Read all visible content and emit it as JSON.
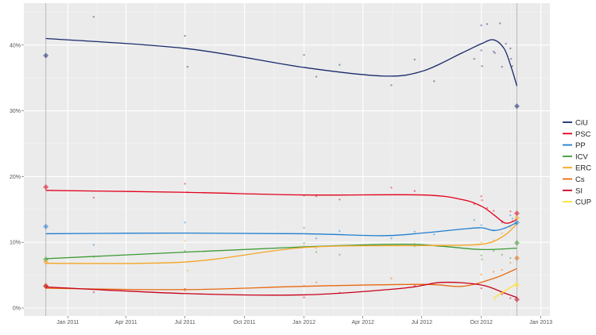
{
  "chart_data": {
    "type": "line",
    "title": "",
    "xlabel": "",
    "ylabel": "",
    "xlim": [
      "2010-10-25",
      "2013-01-15"
    ],
    "ylim": [
      -1,
      46
    ],
    "grid": true,
    "legend_position": "right",
    "x_ticks": [
      {
        "date": "2011-01-01",
        "label": "Jan 2011"
      },
      {
        "date": "2011-04-01",
        "label": "Apr 2011"
      },
      {
        "date": "2011-07-01",
        "label": "Jul 2011"
      },
      {
        "date": "2011-10-01",
        "label": "Oct 2011"
      },
      {
        "date": "2012-01-01",
        "label": "Jan 2012"
      },
      {
        "date": "2012-04-01",
        "label": "Apr 2012"
      },
      {
        "date": "2012-07-01",
        "label": "Jul 2012"
      },
      {
        "date": "2012-10-01",
        "label": "Oct 2012"
      },
      {
        "date": "2013-01-01",
        "label": "Jan 2013"
      }
    ],
    "y_ticks": [
      {
        "value": 0,
        "label": "0%"
      },
      {
        "value": 10,
        "label": "10%"
      },
      {
        "value": 20,
        "label": "20%"
      },
      {
        "value": 30,
        "label": "30%"
      },
      {
        "value": 40,
        "label": "40%"
      }
    ],
    "election_dates": [
      "2010-11-28",
      "2012-11-25"
    ],
    "series": [
      {
        "name": "CiU",
        "color": "#1a2a6c",
        "trend": [
          [
            "2010-11-28",
            41
          ],
          [
            "2011-07-01",
            39.5
          ],
          [
            "2012-01-01",
            36.6
          ],
          [
            "2012-05-01",
            35.3
          ],
          [
            "2012-07-01",
            36
          ],
          [
            "2012-09-01",
            38.8
          ],
          [
            "2012-10-01",
            40.2
          ],
          [
            "2012-10-20",
            40.8
          ],
          [
            "2012-11-05",
            39.5
          ],
          [
            "2012-11-15",
            37
          ],
          [
            "2012-11-25",
            33.8
          ]
        ],
        "results": [
          [
            "2010-11-28",
            38.4
          ],
          [
            "2012-11-25",
            30.7
          ]
        ],
        "polls": [
          [
            "2011-02-10",
            44.3
          ],
          [
            "2011-07-01",
            41.4
          ],
          [
            "2011-07-05",
            36.7
          ],
          [
            "2012-01-01",
            38.5
          ],
          [
            "2012-01-20",
            35.2
          ],
          [
            "2012-02-25",
            37
          ],
          [
            "2012-05-15",
            33.9
          ],
          [
            "2012-06-20",
            37.8
          ],
          [
            "2012-07-20",
            34.5
          ],
          [
            "2012-09-20",
            37.9
          ],
          [
            "2012-10-01",
            43
          ],
          [
            "2012-10-01",
            39.2
          ],
          [
            "2012-10-02",
            36.8
          ],
          [
            "2012-10-10",
            43.2
          ],
          [
            "2012-10-20",
            39
          ],
          [
            "2012-10-22",
            38.8
          ],
          [
            "2012-10-30",
            43.3
          ],
          [
            "2012-11-02",
            36.7
          ],
          [
            "2012-11-08",
            40.2
          ],
          [
            "2012-11-15",
            39.5
          ],
          [
            "2012-11-16",
            37.9
          ],
          [
            "2012-11-18",
            36.8
          ]
        ]
      },
      {
        "name": "PSC",
        "color": "#e2001a",
        "trend": [
          [
            "2010-11-28",
            17.9
          ],
          [
            "2011-07-01",
            17.6
          ],
          [
            "2012-01-01",
            17.2
          ],
          [
            "2012-07-01",
            17.2
          ],
          [
            "2012-09-01",
            16.5
          ],
          [
            "2012-10-01",
            15.5
          ],
          [
            "2012-10-20",
            14.2
          ],
          [
            "2012-11-05",
            13
          ],
          [
            "2012-11-15",
            13
          ],
          [
            "2012-11-25",
            13.5
          ]
        ],
        "results": [
          [
            "2010-11-28",
            18.4
          ],
          [
            "2012-11-25",
            14.4
          ]
        ],
        "polls": [
          [
            "2011-02-10",
            16.8
          ],
          [
            "2011-07-01",
            18.9
          ],
          [
            "2011-07-05",
            17.6
          ],
          [
            "2012-01-01",
            17.1
          ],
          [
            "2012-01-20",
            17
          ],
          [
            "2012-02-25",
            16.5
          ],
          [
            "2012-05-15",
            18.3
          ],
          [
            "2012-06-20",
            17.8
          ],
          [
            "2012-09-20",
            15.8
          ],
          [
            "2012-10-01",
            17
          ],
          [
            "2012-10-02",
            16.4
          ],
          [
            "2012-10-10",
            15.2
          ],
          [
            "2012-10-20",
            14.8
          ],
          [
            "2012-11-02",
            13.2
          ],
          [
            "2012-11-15",
            14.7
          ],
          [
            "2012-11-18",
            13.2
          ]
        ]
      },
      {
        "name": "PP",
        "color": "#1f7fd0",
        "trend": [
          [
            "2010-11-28",
            11.3
          ],
          [
            "2011-07-01",
            11.4
          ],
          [
            "2012-01-01",
            11.3
          ],
          [
            "2012-05-01",
            11
          ],
          [
            "2012-07-01",
            11.4
          ],
          [
            "2012-09-01",
            12
          ],
          [
            "2012-10-01",
            12.2
          ],
          [
            "2012-10-20",
            11.8
          ],
          [
            "2012-11-05",
            12.1
          ],
          [
            "2012-11-25",
            13
          ]
        ],
        "results": [
          [
            "2010-11-28",
            12.4
          ],
          [
            "2012-11-25",
            13
          ]
        ],
        "polls": [
          [
            "2011-02-10",
            9.6
          ],
          [
            "2011-07-01",
            13
          ],
          [
            "2012-01-01",
            12.2
          ],
          [
            "2012-01-20",
            10.6
          ],
          [
            "2012-02-25",
            11.7
          ],
          [
            "2012-05-15",
            10.6
          ],
          [
            "2012-06-20",
            11.6
          ],
          [
            "2012-07-20",
            11.2
          ],
          [
            "2012-09-20",
            13.4
          ],
          [
            "2012-10-01",
            12.6
          ],
          [
            "2012-10-20",
            11.8
          ],
          [
            "2012-11-02",
            13
          ],
          [
            "2012-11-15",
            14.1
          ],
          [
            "2012-11-18",
            13.6
          ]
        ]
      },
      {
        "name": "ICV",
        "color": "#3c9a34",
        "trend": [
          [
            "2010-11-28",
            7.5
          ],
          [
            "2011-07-01",
            8.5
          ],
          [
            "2012-01-01",
            9.3
          ],
          [
            "2012-06-01",
            9.7
          ],
          [
            "2012-08-01",
            9.4
          ],
          [
            "2012-10-01",
            8.9
          ],
          [
            "2012-11-25",
            9.1
          ]
        ],
        "results": [
          [
            "2010-11-28",
            7.4
          ],
          [
            "2012-11-25",
            9.9
          ]
        ],
        "polls": [
          [
            "2011-02-10",
            7.8
          ],
          [
            "2011-07-01",
            8.7
          ],
          [
            "2012-01-01",
            9.9
          ],
          [
            "2012-01-20",
            8.5
          ],
          [
            "2012-02-25",
            8.1
          ],
          [
            "2012-06-20",
            9.4
          ],
          [
            "2012-10-01",
            8
          ],
          [
            "2012-10-02",
            7.4
          ],
          [
            "2012-10-20",
            8.7
          ],
          [
            "2012-11-02",
            8.1
          ],
          [
            "2012-11-15",
            7.6
          ]
        ]
      },
      {
        "name": "ERC",
        "color": "#f5a623",
        "trend": [
          [
            "2010-11-28",
            6.8
          ],
          [
            "2011-07-01",
            7
          ],
          [
            "2012-01-01",
            9.2
          ],
          [
            "2012-07-01",
            9.5
          ],
          [
            "2012-10-01",
            9.7
          ],
          [
            "2012-11-05",
            11
          ],
          [
            "2012-11-25",
            12.8
          ]
        ],
        "results": [
          [
            "2010-11-28",
            7
          ],
          [
            "2012-11-25",
            13.7
          ]
        ],
        "polls": [
          [
            "2011-07-01",
            10.2
          ],
          [
            "2011-07-05",
            5.7
          ],
          [
            "2012-01-01",
            9.5
          ],
          [
            "2012-01-20",
            9.1
          ],
          [
            "2012-06-20",
            9.8
          ],
          [
            "2012-10-01",
            10
          ],
          [
            "2012-10-20",
            10.3
          ],
          [
            "2012-11-02",
            11.4
          ],
          [
            "2012-11-15",
            12.3
          ]
        ]
      },
      {
        "name": "Cs",
        "color": "#e86a12",
        "trend": [
          [
            "2010-11-28",
            3
          ],
          [
            "2011-07-01",
            2.8
          ],
          [
            "2012-01-01",
            3.3
          ],
          [
            "2012-07-01",
            3.6
          ],
          [
            "2012-09-01",
            3.3
          ],
          [
            "2012-10-20",
            4.5
          ],
          [
            "2012-11-25",
            6
          ]
        ],
        "results": [
          [
            "2010-11-28",
            3.4
          ],
          [
            "2012-11-25",
            7.6
          ]
        ],
        "polls": [
          [
            "2011-07-01",
            2.6
          ],
          [
            "2012-01-01",
            3.4
          ],
          [
            "2012-01-20",
            3.9
          ],
          [
            "2012-05-15",
            4.5
          ],
          [
            "2012-10-01",
            5.1
          ],
          [
            "2012-10-20",
            5.5
          ],
          [
            "2012-11-02",
            5.8
          ],
          [
            "2012-11-15",
            6.9
          ]
        ]
      },
      {
        "name": "SI",
        "color": "#c8001a",
        "trend": [
          [
            "2010-11-28",
            3.2
          ],
          [
            "2011-07-01",
            2.2
          ],
          [
            "2012-01-01",
            2
          ],
          [
            "2012-06-01",
            3
          ],
          [
            "2012-08-01",
            3.9
          ],
          [
            "2012-10-01",
            3.5
          ],
          [
            "2012-11-05",
            2.3
          ],
          [
            "2012-11-25",
            1.6
          ]
        ],
        "results": [
          [
            "2010-11-28",
            3.3
          ],
          [
            "2012-11-25",
            1.3
          ]
        ],
        "polls": [
          [
            "2011-02-10",
            2.4
          ],
          [
            "2011-07-01",
            2.9
          ],
          [
            "2012-01-01",
            1.6
          ],
          [
            "2012-02-25",
            2.3
          ],
          [
            "2012-06-20",
            3.4
          ],
          [
            "2012-10-01",
            3
          ],
          [
            "2012-11-02",
            2.1
          ],
          [
            "2012-11-15",
            1.5
          ]
        ]
      },
      {
        "name": "CUP",
        "color": "#ffe22e",
        "trend": [
          [
            "2012-10-20",
            1.5
          ],
          [
            "2012-11-05",
            2.5
          ],
          [
            "2012-11-25",
            3.7
          ]
        ],
        "results": [
          [
            "2012-11-25",
            3.5
          ]
        ],
        "polls": [
          [
            "2012-10-22",
            1.3
          ],
          [
            "2012-11-02",
            2.6
          ],
          [
            "2012-11-15",
            3.2
          ]
        ]
      }
    ]
  }
}
